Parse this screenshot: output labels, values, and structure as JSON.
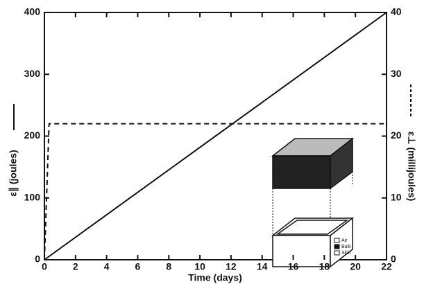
{
  "chart_data": {
    "type": "line",
    "x_label": "Time (days)",
    "y_label": "ε∥ (joules)",
    "y2_label": "ε⊥ (millijoules)",
    "series": [
      {
        "x": [
          0,
          22
        ],
        "values": [
          0,
          400
        ],
        "color": "#111111",
        "style": "solid"
      },
      {
        "x": [
          0,
          0.3,
          22
        ],
        "values": [
          0,
          22,
          22
        ],
        "color": "#111111",
        "style": "dashed",
        "axis": "y2"
      }
    ],
    "xlim": [
      0,
      22
    ],
    "xticks": [
      0,
      2,
      4,
      6,
      8,
      10,
      12,
      14,
      16,
      18,
      20,
      22
    ],
    "ylim": [
      0,
      400
    ],
    "yticks": [
      0,
      100,
      200,
      300,
      400
    ],
    "y2lim": [
      0,
      40
    ],
    "y2ticks": [
      0,
      10,
      20,
      30,
      40
    ],
    "inset_legend": [
      "Air",
      "Bulk",
      "Skin"
    ]
  }
}
